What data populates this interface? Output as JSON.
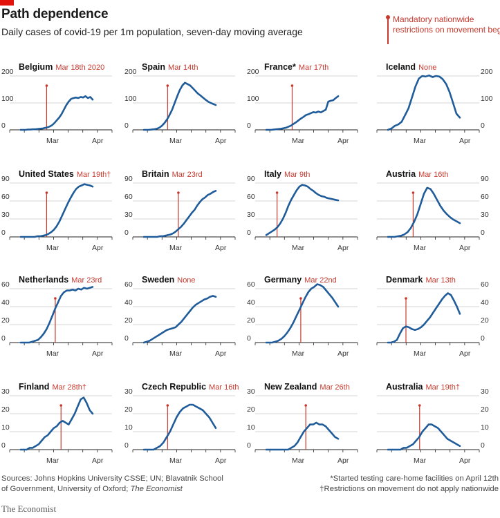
{
  "header": {
    "title": "Path dependence",
    "subtitle": "Daily cases of covid-19 per 1m population, seven-day moving average"
  },
  "legend": {
    "label": "Mandatory nationwide restrictions on movement begin"
  },
  "footer": {
    "sources": "Sources: Johns Hopkins University CSSE; UN; Blavatnik School of Government, University of Oxford;",
    "sources_italic": "The Economist",
    "note1": "*Started testing care-home facilities on April 12th",
    "note2": "†Restrictions on movement do not apply nationwide",
    "brand": "The Economist"
  },
  "colors": {
    "line": "#1f5c99",
    "marker": "#c8382d",
    "accent": "#e3120b"
  },
  "chart_data": [
    {
      "type": "line",
      "name": "Belgium",
      "date": "Mar 18th 2020",
      "ylim": [
        0,
        200
      ],
      "yticks": [
        0,
        100,
        200
      ],
      "xlabels": [
        "Mar",
        "Apr"
      ],
      "marker": 0.36,
      "values": [
        0,
        0,
        0,
        1,
        1,
        2,
        2,
        3,
        4,
        5,
        7,
        9,
        12,
        17,
        25,
        35,
        45,
        58,
        75,
        92,
        105,
        115,
        118,
        120,
        118,
        122,
        120,
        125,
        118,
        122,
        112
      ]
    },
    {
      "type": "line",
      "name": "Spain",
      "date": "Mar 14th",
      "ylim": [
        0,
        200
      ],
      "yticks": [
        0,
        100,
        200
      ],
      "xlabels": [
        "Mar",
        "Apr"
      ],
      "marker": 0.33,
      "values": [
        0,
        0,
        0,
        1,
        2,
        4,
        8,
        15,
        25,
        38,
        55,
        75,
        100,
        125,
        148,
        165,
        175,
        170,
        165,
        155,
        145,
        135,
        128,
        120,
        112,
        105,
        100,
        96,
        92
      ]
    },
    {
      "type": "line",
      "name": "France*",
      "date": "Mar 17th",
      "ylim": [
        0,
        200
      ],
      "yticks": [
        0,
        100,
        200
      ],
      "xlabels": [
        "Mar",
        "Apr"
      ],
      "marker": 0.36,
      "values": [
        0,
        0,
        0,
        1,
        2,
        3,
        4,
        6,
        8,
        12,
        16,
        22,
        28,
        35,
        42,
        48,
        55,
        58,
        62,
        66,
        64,
        68,
        65,
        70,
        75,
        105,
        108,
        110,
        118,
        125
      ]
    },
    {
      "type": "line",
      "name": "Iceland",
      "date": "None",
      "ylim": [
        0,
        200
      ],
      "yticks": [
        0,
        100,
        200
      ],
      "xlabels": [
        "Mar",
        "Apr"
      ],
      "marker": null,
      "values": [
        0,
        5,
        15,
        20,
        30,
        55,
        80,
        120,
        160,
        190,
        200,
        198,
        202,
        196,
        200,
        198,
        188,
        170,
        140,
        100,
        60,
        45
      ]
    },
    {
      "type": "line",
      "name": "United States",
      "date": "Mar 19th†",
      "ylim": [
        0,
        90
      ],
      "yticks": [
        0,
        30,
        60,
        90
      ],
      "xlabels": [
        "Mar",
        "Apr"
      ],
      "marker": 0.36,
      "values": [
        0,
        0,
        0,
        0,
        0,
        0,
        1,
        1,
        2,
        3,
        5,
        8,
        12,
        18,
        26,
        36,
        46,
        56,
        65,
        73,
        80,
        84,
        86,
        88,
        87,
        86,
        84
      ]
    },
    {
      "type": "line",
      "name": "Britain",
      "date": "Mar 23rd",
      "ylim": [
        0,
        90
      ],
      "yticks": [
        0,
        30,
        60,
        90
      ],
      "xlabels": [
        "Mar",
        "Apr"
      ],
      "marker": 0.48,
      "values": [
        0,
        0,
        0,
        0,
        0,
        0,
        1,
        1,
        2,
        3,
        4,
        6,
        9,
        13,
        17,
        22,
        28,
        34,
        40,
        45,
        52,
        58,
        63,
        66,
        70,
        72,
        75,
        77
      ]
    },
    {
      "type": "line",
      "name": "Italy",
      "date": "Mar 9th",
      "ylim": [
        0,
        90
      ],
      "yticks": [
        0,
        30,
        60,
        90
      ],
      "xlabels": [
        "Mar",
        "Apr"
      ],
      "marker": 0.15,
      "values": [
        3,
        6,
        9,
        12,
        16,
        22,
        30,
        40,
        52,
        62,
        70,
        78,
        84,
        87,
        86,
        84,
        80,
        77,
        73,
        70,
        68,
        67,
        65,
        64,
        63,
        62,
        61
      ]
    },
    {
      "type": "line",
      "name": "Austria",
      "date": "Mar 16th",
      "ylim": [
        0,
        90
      ],
      "yticks": [
        0,
        30,
        60,
        90
      ],
      "xlabels": [
        "Mar",
        "Apr"
      ],
      "marker": 0.35,
      "values": [
        0,
        0,
        0,
        1,
        2,
        4,
        8,
        15,
        25,
        38,
        55,
        72,
        82,
        80,
        72,
        62,
        52,
        44,
        38,
        33,
        29,
        26,
        23
      ]
    },
    {
      "type": "line",
      "name": "Netherlands",
      "date": "Mar 23rd",
      "ylim": [
        0,
        60
      ],
      "yticks": [
        0,
        20,
        40,
        60
      ],
      "xlabels": [
        "Mar",
        "Apr"
      ],
      "marker": 0.48,
      "values": [
        0,
        0,
        0,
        0,
        1,
        2,
        3,
        6,
        10,
        15,
        22,
        30,
        38,
        45,
        52,
        56,
        58,
        58,
        59,
        58,
        60,
        59,
        61,
        60,
        61,
        62
      ]
    },
    {
      "type": "line",
      "name": "Sweden",
      "date": "None",
      "ylim": [
        0,
        60
      ],
      "yticks": [
        0,
        20,
        40,
        60
      ],
      "xlabels": [
        "Mar",
        "Apr"
      ],
      "marker": null,
      "values": [
        0,
        1,
        2,
        4,
        6,
        8,
        10,
        12,
        14,
        15,
        16,
        17,
        20,
        23,
        27,
        31,
        35,
        39,
        42,
        44,
        46,
        48,
        49,
        51,
        52,
        51
      ]
    },
    {
      "type": "line",
      "name": "Germany",
      "date": "Mar 22nd",
      "ylim": [
        0,
        60
      ],
      "yticks": [
        0,
        20,
        40,
        60
      ],
      "xlabels": [
        "Mar",
        "Apr"
      ],
      "marker": 0.48,
      "values": [
        0,
        0,
        0,
        1,
        2,
        4,
        7,
        11,
        16,
        22,
        29,
        36,
        43,
        50,
        56,
        60,
        62,
        65,
        64,
        62,
        58,
        54,
        50,
        45,
        40
      ]
    },
    {
      "type": "line",
      "name": "Denmark",
      "date": "Mar 13th",
      "ylim": [
        0,
        60
      ],
      "yticks": [
        0,
        20,
        40,
        60
      ],
      "xlabels": [
        "Mar",
        "Apr"
      ],
      "marker": 0.25,
      "values": [
        0,
        0,
        1,
        3,
        10,
        16,
        18,
        17,
        15,
        14,
        15,
        17,
        20,
        24,
        28,
        33,
        38,
        43,
        48,
        52,
        55,
        53,
        47,
        40,
        32
      ]
    },
    {
      "type": "line",
      "name": "Finland",
      "date": "Mar 28th†",
      "ylim": [
        0,
        30
      ],
      "yticks": [
        0,
        10,
        20,
        30
      ],
      "xlabels": [
        "Mar",
        "Apr"
      ],
      "marker": 0.56,
      "values": [
        0,
        0,
        0,
        1,
        1,
        2,
        3,
        5,
        7,
        8,
        10,
        12,
        13,
        15,
        16,
        15,
        14,
        17,
        20,
        24,
        28,
        29,
        26,
        22,
        20
      ]
    },
    {
      "type": "line",
      "name": "Czech Republic",
      "date": "Mar 16th",
      "ylim": [
        0,
        30
      ],
      "yticks": [
        0,
        10,
        20,
        30
      ],
      "xlabels": [
        "Mar",
        "Apr"
      ],
      "marker": 0.33,
      "values": [
        0,
        0,
        0,
        0,
        1,
        2,
        4,
        7,
        10,
        14,
        18,
        21,
        23,
        24,
        25,
        25,
        24,
        23,
        22,
        20,
        18,
        15,
        12
      ]
    },
    {
      "type": "line",
      "name": "New Zealand",
      "date": "Mar 26th",
      "ylim": [
        0,
        30
      ],
      "yticks": [
        0,
        10,
        20,
        30
      ],
      "xlabels": [
        "Mar",
        "Apr"
      ],
      "marker": 0.55,
      "values": [
        0,
        0,
        0,
        0,
        0,
        0,
        0,
        0,
        1,
        2,
        4,
        7,
        10,
        12,
        14,
        14,
        15,
        14,
        14,
        13,
        11,
        9,
        7,
        6
      ]
    },
    {
      "type": "line",
      "name": "Australia",
      "date": "Mar 19th†",
      "ylim": [
        0,
        30
      ],
      "yticks": [
        0,
        10,
        20,
        30
      ],
      "xlabels": [
        "Mar",
        "Apr"
      ],
      "marker": 0.44,
      "values": [
        0,
        0,
        0,
        0,
        0,
        1,
        1,
        2,
        3,
        5,
        7,
        10,
        12,
        14,
        14,
        13,
        12,
        10,
        8,
        6,
        5,
        4,
        3,
        2
      ]
    }
  ]
}
